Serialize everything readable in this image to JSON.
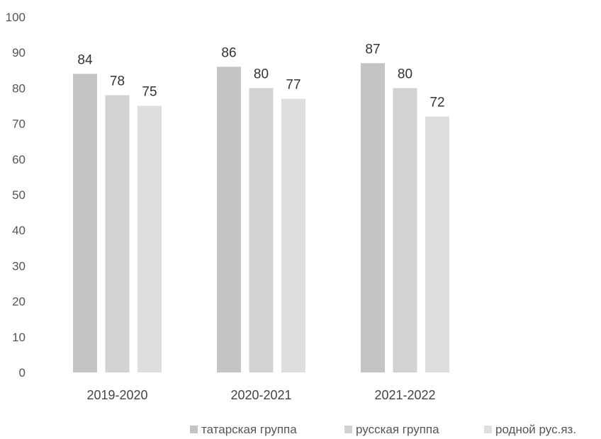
{
  "chart_data": {
    "type": "bar",
    "title": "",
    "xlabel": "",
    "ylabel": "",
    "categories": [
      "2019-2020",
      "2020-2021",
      "2021-2022"
    ],
    "series": [
      {
        "name": "татарская группа",
        "values": [
          84,
          86,
          87
        ],
        "color": "#c4c4c4"
      },
      {
        "name": "русская группа",
        "values": [
          78,
          80,
          80
        ],
        "color": "#d2d2d2"
      },
      {
        "name": "родной рус.яз.",
        "values": [
          75,
          77,
          72
        ],
        "color": "#dedede"
      }
    ],
    "ylim": [
      0,
      100
    ],
    "yticks": [
      0,
      10,
      20,
      30,
      40,
      50,
      60,
      70,
      80,
      90,
      100
    ],
    "grid": false,
    "data_labels": true,
    "legend_position": "bottom-right"
  }
}
